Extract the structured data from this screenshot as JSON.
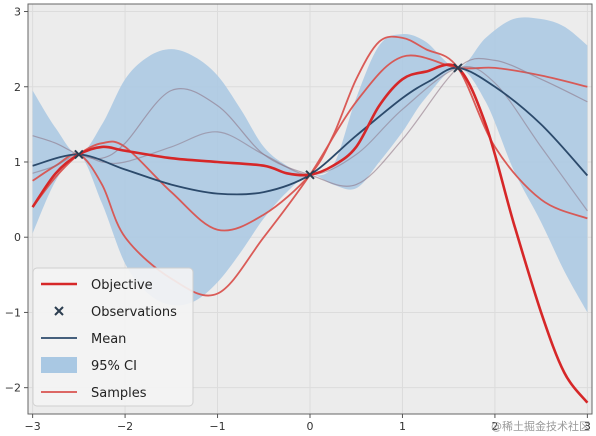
{
  "chart_data": {
    "type": "line",
    "title": "",
    "xlabel": "",
    "ylabel": "",
    "xlim": [
      -3.05,
      3.05
    ],
    "ylim": [
      -2.35,
      3.1
    ],
    "xticks": [
      -3,
      -2,
      -1,
      0,
      1,
      2,
      3
    ],
    "yticks": [
      -2,
      -1,
      0,
      1,
      2,
      3
    ],
    "xtick_labels": [
      "−3",
      "−2",
      "−1",
      "0",
      "1",
      "2",
      "3"
    ],
    "ytick_labels": [
      "−2",
      "−1",
      "0",
      "1",
      "2",
      "3"
    ],
    "grid": true,
    "legend_position": "lower-left",
    "colors": {
      "objective": "#d62728",
      "observations": "#2c3e50",
      "mean": "#2c4a6b",
      "ci": "#a9c8e3",
      "samples": "#d9534f",
      "grid": "#dcdcdc",
      "background": "#ececec"
    },
    "observations": {
      "name": "Observations",
      "x": [
        -2.5,
        0.0,
        1.6
      ],
      "y": [
        1.1,
        0.83,
        2.25
      ]
    },
    "mean": {
      "name": "Mean",
      "x": [
        -3.0,
        -2.5,
        -2.0,
        -1.5,
        -1.0,
        -0.5,
        0.0,
        0.5,
        1.0,
        1.3,
        1.6,
        2.0,
        2.5,
        3.0
      ],
      "y": [
        0.95,
        1.1,
        0.9,
        0.7,
        0.58,
        0.6,
        0.83,
        1.35,
        1.85,
        2.08,
        2.25,
        2.0,
        1.5,
        0.82
      ]
    },
    "ci": {
      "name": "95% CI",
      "x": [
        -3.0,
        -2.75,
        -2.5,
        -2.25,
        -2.0,
        -1.75,
        -1.5,
        -1.25,
        -1.0,
        -0.75,
        -0.5,
        -0.25,
        0.0,
        0.25,
        0.5,
        0.75,
        1.0,
        1.25,
        1.6,
        1.9,
        2.2,
        2.5,
        2.75,
        3.0
      ],
      "lower": [
        0.05,
        0.75,
        1.1,
        0.45,
        -0.35,
        -0.75,
        -0.9,
        -0.85,
        -0.6,
        -0.2,
        0.25,
        0.6,
        0.83,
        0.7,
        0.65,
        1.0,
        1.4,
        1.85,
        2.25,
        1.8,
        0.9,
        0.2,
        -0.45,
        -1.0
      ],
      "upper": [
        1.95,
        1.45,
        1.1,
        1.5,
        2.1,
        2.4,
        2.5,
        2.4,
        2.15,
        1.7,
        1.2,
        0.95,
        0.83,
        0.95,
        1.85,
        2.55,
        2.7,
        2.6,
        2.25,
        2.65,
        2.9,
        2.9,
        2.8,
        2.55
      ]
    },
    "objective": {
      "name": "Objective",
      "x": [
        -3.0,
        -2.75,
        -2.5,
        -2.25,
        -2.0,
        -1.5,
        -1.0,
        -0.5,
        -0.25,
        0.0,
        0.25,
        0.5,
        0.75,
        1.0,
        1.25,
        1.6,
        1.9,
        2.2,
        2.5,
        2.75,
        3.0
      ],
      "y": [
        0.4,
        0.85,
        1.1,
        1.2,
        1.15,
        1.05,
        1.0,
        0.95,
        0.85,
        0.83,
        0.95,
        1.2,
        1.75,
        2.1,
        2.2,
        2.25,
        1.5,
        0.2,
        -1.0,
        -1.8,
        -2.2
      ]
    },
    "samples": [
      {
        "x": [
          -3.0,
          -2.75,
          -2.5,
          -2.25,
          -2.0,
          -1.5,
          -1.0,
          -0.5,
          0.0,
          0.25,
          0.5,
          0.75,
          1.0,
          1.25,
          1.6,
          2.0,
          2.5,
          3.0
        ],
        "y": [
          0.4,
          0.8,
          1.1,
          1.25,
          1.2,
          0.6,
          0.1,
          0.3,
          0.83,
          1.35,
          2.1,
          2.6,
          2.65,
          2.5,
          2.25,
          1.2,
          0.5,
          0.25
        ]
      },
      {
        "x": [
          -3.0,
          -2.75,
          -2.5,
          -2.25,
          -2.0,
          -1.5,
          -1.0,
          -0.5,
          0.0,
          0.5,
          1.0,
          1.6,
          2.0,
          2.5,
          3.0
        ],
        "y": [
          0.75,
          0.95,
          1.1,
          0.7,
          0.0,
          -0.55,
          -0.75,
          0.0,
          0.83,
          1.8,
          2.4,
          2.25,
          2.25,
          2.15,
          2.0
        ]
      },
      {
        "x": [
          -3.0,
          -2.75,
          -2.5,
          -2.25,
          -2.0,
          -1.5,
          -1.0,
          -0.5,
          0.0,
          0.5,
          1.0,
          1.6,
          2.0,
          2.5,
          3.0
        ],
        "y": [
          1.35,
          1.25,
          1.1,
          1.05,
          1.25,
          1.95,
          1.75,
          1.1,
          0.83,
          0.7,
          1.3,
          2.25,
          2.35,
          2.1,
          1.8
        ]
      },
      {
        "x": [
          -3.0,
          -2.75,
          -2.5,
          -2.25,
          -2.0,
          -1.5,
          -1.0,
          -0.5,
          0.0,
          0.5,
          1.0,
          1.6,
          2.0,
          2.5,
          3.0
        ],
        "y": [
          0.85,
          0.95,
          1.1,
          1.0,
          1.0,
          1.2,
          1.4,
          1.1,
          0.83,
          1.1,
          1.7,
          2.25,
          2.05,
          1.2,
          0.35
        ]
      }
    ],
    "legend": [
      {
        "label": "Objective",
        "kind": "line-red"
      },
      {
        "label": "Observations",
        "kind": "marker-x"
      },
      {
        "label": "Mean",
        "kind": "line-navy"
      },
      {
        "label": "95% CI",
        "kind": "patch"
      },
      {
        "label": "Samples",
        "kind": "line-red-thin"
      }
    ]
  },
  "watermark": "@稀土掘金技术社区"
}
